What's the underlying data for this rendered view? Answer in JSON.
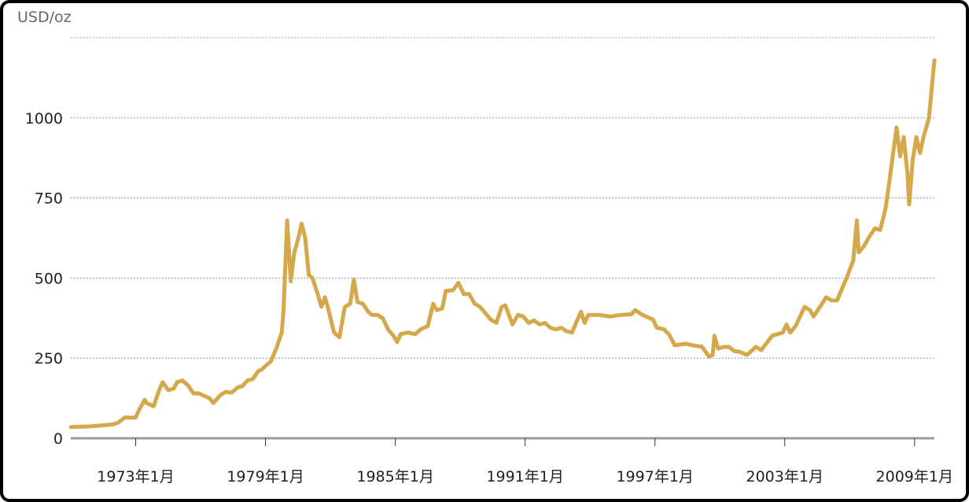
{
  "chart_data": {
    "type": "line",
    "ylabel": "USD/oz",
    "y_ticks": [
      0,
      250,
      500,
      750,
      1000
    ],
    "ylim": [
      0,
      1250
    ],
    "x_ticks": [
      "1973年1月",
      "1979年1月",
      "1985年1月",
      "1991年1月",
      "1997年1月",
      "2003年1月",
      "2009年1月"
    ],
    "xlim": [
      "1970-01",
      "2009-12"
    ],
    "grid": "horizontal dotted",
    "line_color": "#d4a84b",
    "points": [
      [
        "1970-01",
        35
      ],
      [
        "1970-06",
        36
      ],
      [
        "1970-12",
        37
      ],
      [
        "1971-06",
        40
      ],
      [
        "1971-12",
        43
      ],
      [
        "1972-03",
        48
      ],
      [
        "1972-07",
        65
      ],
      [
        "1972-10",
        64
      ],
      [
        "1973-01",
        65
      ],
      [
        "1973-03",
        90
      ],
      [
        "1973-06",
        120
      ],
      [
        "1973-07",
        110
      ],
      [
        "1973-11",
        100
      ],
      [
        "1974-02",
        150
      ],
      [
        "1974-04",
        175
      ],
      [
        "1974-07",
        150
      ],
      [
        "1974-10",
        155
      ],
      [
        "1974-12",
        175
      ],
      [
        "1975-03",
        180
      ],
      [
        "1975-06",
        165
      ],
      [
        "1975-09",
        140
      ],
      [
        "1975-12",
        140
      ],
      [
        "1976-06",
        125
      ],
      [
        "1976-08",
        110
      ],
      [
        "1976-12",
        135
      ],
      [
        "1977-03",
        145
      ],
      [
        "1977-06",
        142
      ],
      [
        "1977-10",
        160
      ],
      [
        "1977-12",
        162
      ],
      [
        "1978-03",
        180
      ],
      [
        "1978-06",
        185
      ],
      [
        "1978-09",
        210
      ],
      [
        "1978-11",
        215
      ],
      [
        "1979-01",
        226
      ],
      [
        "1979-04",
        240
      ],
      [
        "1979-07",
        280
      ],
      [
        "1979-10",
        330
      ],
      [
        "1979-11",
        400
      ],
      [
        "1980-01",
        680
      ],
      [
        "1980-03",
        490
      ],
      [
        "1980-05",
        580
      ],
      [
        "1980-07",
        620
      ],
      [
        "1980-09",
        670
      ],
      [
        "1980-11",
        625
      ],
      [
        "1981-01",
        510
      ],
      [
        "1981-03",
        500
      ],
      [
        "1981-06",
        450
      ],
      [
        "1981-08",
        410
      ],
      [
        "1981-10",
        440
      ],
      [
        "1981-12",
        400
      ],
      [
        "1982-03",
        330
      ],
      [
        "1982-06",
        315
      ],
      [
        "1982-09",
        410
      ],
      [
        "1982-12",
        420
      ],
      [
        "1983-02",
        495
      ],
      [
        "1983-04",
        425
      ],
      [
        "1983-07",
        420
      ],
      [
        "1983-10",
        395
      ],
      [
        "1983-12",
        385
      ],
      [
        "1984-03",
        385
      ],
      [
        "1984-06",
        375
      ],
      [
        "1984-09",
        340
      ],
      [
        "1984-12",
        320
      ],
      [
        "1985-02",
        300
      ],
      [
        "1985-04",
        325
      ],
      [
        "1985-08",
        330
      ],
      [
        "1985-12",
        325
      ],
      [
        "1986-03",
        340
      ],
      [
        "1986-07",
        350
      ],
      [
        "1986-10",
        420
      ],
      [
        "1986-12",
        400
      ],
      [
        "1987-03",
        405
      ],
      [
        "1987-05",
        460
      ],
      [
        "1987-09",
        462
      ],
      [
        "1987-12",
        485
      ],
      [
        "1988-03",
        450
      ],
      [
        "1988-06",
        450
      ],
      [
        "1988-09",
        420
      ],
      [
        "1988-12",
        410
      ],
      [
        "1989-03",
        390
      ],
      [
        "1989-06",
        370
      ],
      [
        "1989-09",
        360
      ],
      [
        "1989-12",
        410
      ],
      [
        "1990-02",
        415
      ],
      [
        "1990-06",
        355
      ],
      [
        "1990-09",
        385
      ],
      [
        "1990-12",
        380
      ],
      [
        "1991-03",
        360
      ],
      [
        "1991-06",
        368
      ],
      [
        "1991-09",
        355
      ],
      [
        "1991-12",
        360
      ],
      [
        "1992-03",
        345
      ],
      [
        "1992-06",
        340
      ],
      [
        "1992-09",
        345
      ],
      [
        "1992-12",
        334
      ],
      [
        "1993-03",
        330
      ],
      [
        "1993-06",
        370
      ],
      [
        "1993-08",
        395
      ],
      [
        "1993-10",
        360
      ],
      [
        "1993-12",
        385
      ],
      [
        "1994-06",
        385
      ],
      [
        "1994-12",
        380
      ],
      [
        "1995-06",
        385
      ],
      [
        "1995-12",
        387
      ],
      [
        "1996-02",
        400
      ],
      [
        "1996-06",
        385
      ],
      [
        "1996-12",
        370
      ],
      [
        "1997-02",
        345
      ],
      [
        "1997-06",
        340
      ],
      [
        "1997-09",
        323
      ],
      [
        "1997-12",
        290
      ],
      [
        "1998-06",
        295
      ],
      [
        "1998-12",
        288
      ],
      [
        "1999-03",
        286
      ],
      [
        "1999-07",
        255
      ],
      [
        "1999-09",
        260
      ],
      [
        "1999-10",
        320
      ],
      [
        "1999-12",
        280
      ],
      [
        "2000-03",
        285
      ],
      [
        "2000-06",
        285
      ],
      [
        "2000-09",
        272
      ],
      [
        "2000-12",
        270
      ],
      [
        "2001-04",
        260
      ],
      [
        "2001-06",
        270
      ],
      [
        "2001-09",
        285
      ],
      [
        "2001-12",
        275
      ],
      [
        "2002-06",
        320
      ],
      [
        "2002-12",
        330
      ],
      [
        "2003-02",
        355
      ],
      [
        "2003-04",
        330
      ],
      [
        "2003-07",
        350
      ],
      [
        "2003-12",
        410
      ],
      [
        "2004-03",
        400
      ],
      [
        "2004-05",
        380
      ],
      [
        "2004-12",
        440
      ],
      [
        "2005-03",
        430
      ],
      [
        "2005-06",
        430
      ],
      [
        "2005-09",
        470
      ],
      [
        "2005-12",
        510
      ],
      [
        "2006-03",
        555
      ],
      [
        "2006-05",
        680
      ],
      [
        "2006-06",
        580
      ],
      [
        "2006-09",
        600
      ],
      [
        "2006-12",
        630
      ],
      [
        "2007-03",
        655
      ],
      [
        "2007-06",
        650
      ],
      [
        "2007-09",
        720
      ],
      [
        "2007-11",
        800
      ],
      [
        "2008-03",
        970
      ],
      [
        "2008-05",
        880
      ],
      [
        "2008-07",
        940
      ],
      [
        "2008-09",
        830
      ],
      [
        "2008-10",
        730
      ],
      [
        "2008-12",
        870
      ],
      [
        "2009-02",
        940
      ],
      [
        "2009-04",
        890
      ],
      [
        "2009-06",
        940
      ],
      [
        "2009-09",
        1000
      ],
      [
        "2009-11",
        1120
      ],
      [
        "2009-12",
        1180
      ]
    ]
  }
}
